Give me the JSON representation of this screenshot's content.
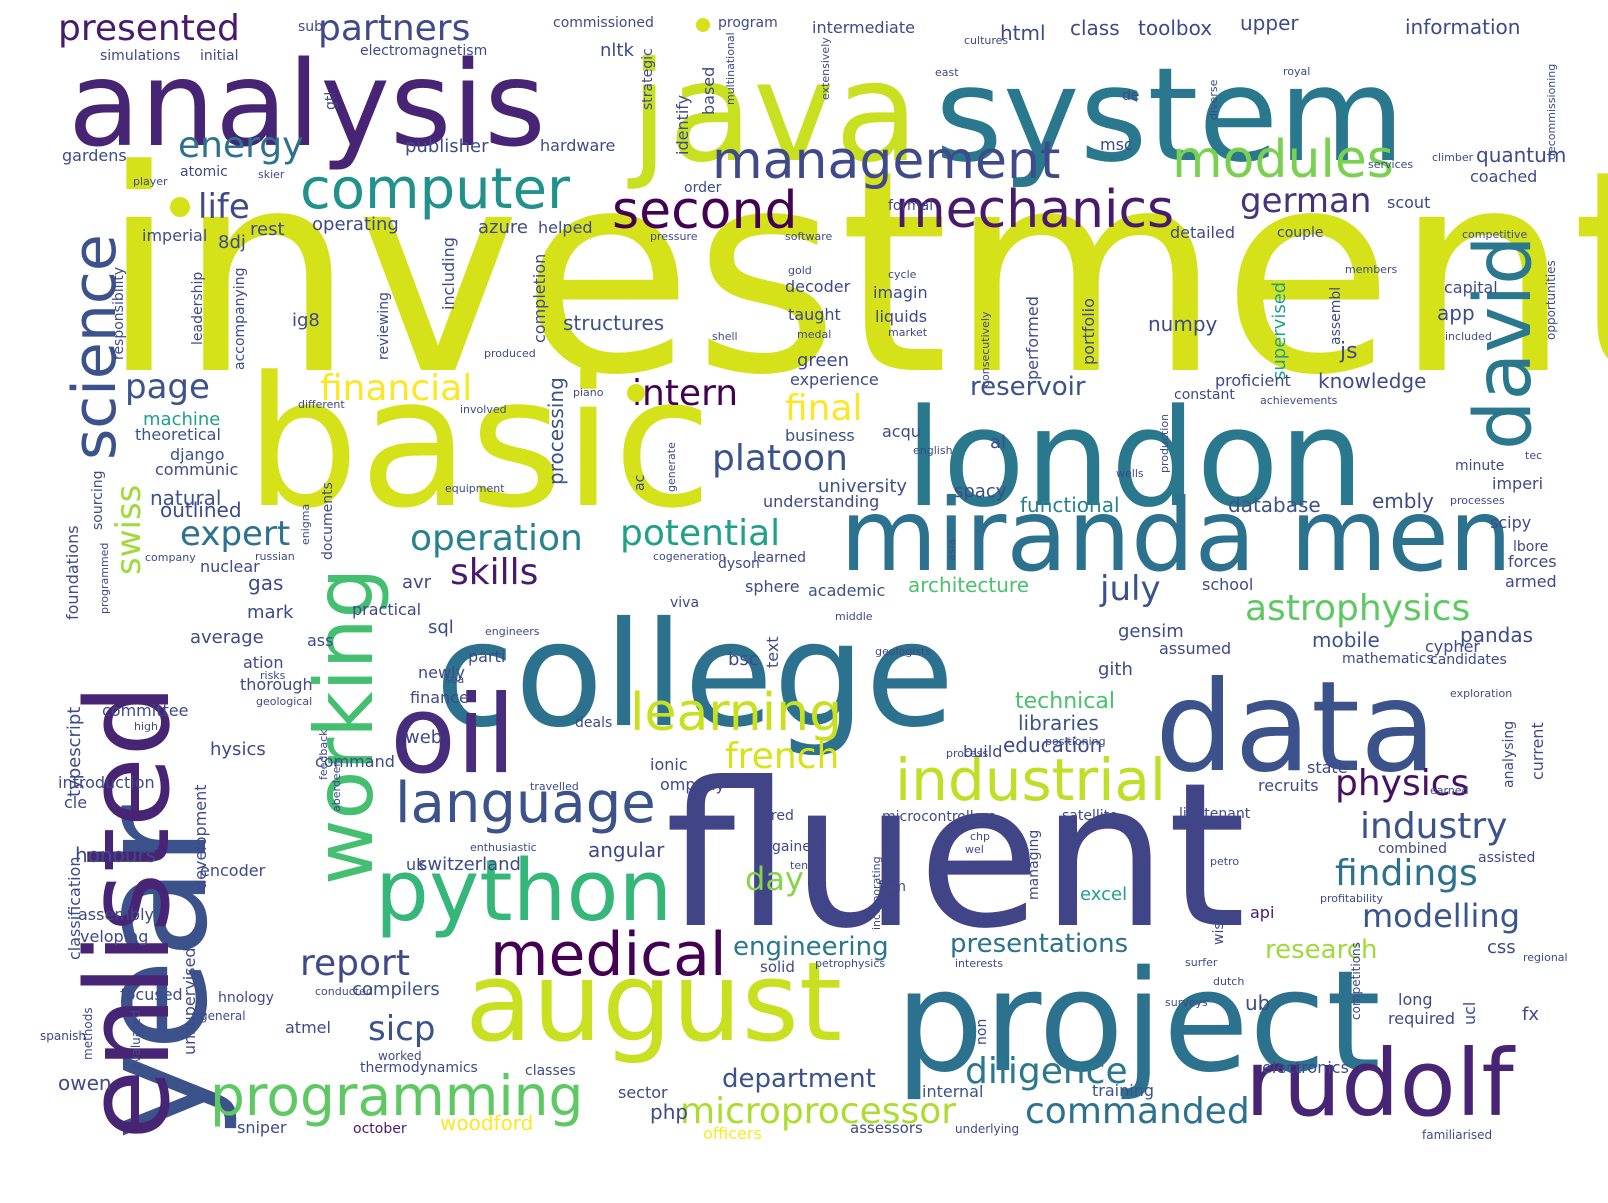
{
  "words": [
    {
      "t": "investment",
      "c": "#d5e21a"
    },
    {
      "t": "fluent",
      "c": "#414487"
    },
    {
      "t": "basic",
      "c": "#d5e21a"
    },
    {
      "t": "year",
      "c": "#3b528b"
    },
    {
      "t": "college",
      "c": "#2c728e"
    },
    {
      "t": "project",
      "c": "#2c728e"
    },
    {
      "t": "java",
      "c": "#c8e020"
    },
    {
      "t": "london",
      "c": "#2a788e"
    },
    {
      "t": "system",
      "c": "#2a788e"
    },
    {
      "t": "analysis",
      "c": "#482475"
    },
    {
      "t": "data",
      "c": "#3b528b"
    },
    {
      "t": "enlisted",
      "c": "#482475"
    },
    {
      "t": "august",
      "c": "#c8e020"
    },
    {
      "t": "miranda",
      "c": "#2c728e"
    },
    {
      "t": "men",
      "c": "#2c728e"
    },
    {
      "t": "oil",
      "c": "#472d7b"
    },
    {
      "t": "rudolf",
      "c": "#482475"
    },
    {
      "t": "python",
      "c": "#35b779"
    },
    {
      "t": "working",
      "c": "#44bf70"
    },
    {
      "t": "david",
      "c": "#2a788e"
    },
    {
      "t": "science",
      "c": "#3b528b"
    },
    {
      "t": "medical",
      "c": "#440154"
    },
    {
      "t": "industrial",
      "c": "#bddf26"
    },
    {
      "t": "language",
      "c": "#3b528b"
    },
    {
      "t": "programming",
      "c": "#5ec962"
    },
    {
      "t": "computer",
      "c": "#21918c"
    },
    {
      "t": "mechanics",
      "c": "#481a6c"
    },
    {
      "t": "management",
      "c": "#3e4a89"
    },
    {
      "t": "modules",
      "c": "#7ad151"
    },
    {
      "t": "second",
      "c": "#440154"
    },
    {
      "t": "learning",
      "c": "#c8e020"
    },
    {
      "t": "astrophysics",
      "c": "#5ec962"
    },
    {
      "t": "operation",
      "c": "#26828e"
    },
    {
      "t": "microprocessor",
      "c": "#addc30"
    },
    {
      "t": "diligence",
      "c": "#2a788e"
    },
    {
      "t": "commanded",
      "c": "#2c728e"
    },
    {
      "t": "industry",
      "c": "#3b528b"
    },
    {
      "t": "findings",
      "c": "#2c728e"
    },
    {
      "t": "physics",
      "c": "#471063"
    },
    {
      "t": "modelling",
      "c": "#39568c"
    },
    {
      "t": "potential",
      "c": "#1fa088"
    },
    {
      "t": "platoon",
      "c": "#3b528b"
    },
    {
      "t": "intern",
      "c": "#440154"
    },
    {
      "t": "financial",
      "c": "#fde725"
    },
    {
      "t": "french",
      "c": "#d8e219"
    },
    {
      "t": "german",
      "c": "#46337e"
    },
    {
      "t": "partners",
      "c": "#3e4a89"
    },
    {
      "t": "presented",
      "c": "#481a6c"
    },
    {
      "t": "energy",
      "c": "#2c728e"
    },
    {
      "t": "report",
      "c": "#3e4a89"
    },
    {
      "t": "skills",
      "c": "#481a6c"
    },
    {
      "t": "expert",
      "c": "#2c728e"
    },
    {
      "t": "swiss",
      "c": "#a0da39"
    },
    {
      "t": "page",
      "c": "#3b528b"
    },
    {
      "t": "life",
      "c": "#3e4a89"
    },
    {
      "t": "july",
      "c": "#3b528b"
    },
    {
      "t": "final",
      "c": "#fde725"
    },
    {
      "t": "sicp",
      "c": "#3b528b"
    },
    {
      "t": "day",
      "c": "#86d549"
    },
    {
      "t": "engineering",
      "c": "#2a788e"
    },
    {
      "t": "presentations",
      "c": "#2c728e"
    },
    {
      "t": "research",
      "c": "#a0da39"
    },
    {
      "t": "department",
      "c": "#3b528b"
    },
    {
      "t": "reservoir",
      "c": "#3b528b"
    },
    {
      "t": "knowledge",
      "c": "#3e4a89"
    },
    {
      "t": "technical",
      "c": "#4ac16d"
    },
    {
      "t": "libraries",
      "c": "#3b528b"
    },
    {
      "t": "education",
      "c": "#3e4a89"
    },
    {
      "t": "functional",
      "c": "#26828e"
    },
    {
      "t": "database",
      "c": "#3b528b"
    },
    {
      "t": "embly",
      "c": "#3e4a89"
    },
    {
      "t": "university",
      "c": "#3b528b"
    },
    {
      "t": "business",
      "c": "#3b528b"
    },
    {
      "t": "structures",
      "c": "#3b528b"
    },
    {
      "t": "architecture",
      "c": "#4ac16d"
    },
    {
      "t": "academic",
      "c": "#3b528b"
    },
    {
      "t": "machine",
      "c": "#1fa088"
    },
    {
      "t": "theoretical",
      "c": "#3b528b"
    },
    {
      "t": "django",
      "c": "#3b528b"
    },
    {
      "t": "natural",
      "c": "#3b528b"
    },
    {
      "t": "mobile",
      "c": "#3b528b"
    },
    {
      "t": "pandas",
      "c": "#3e4a89"
    },
    {
      "t": "angular",
      "c": "#3e4a89"
    },
    {
      "t": "switzerland",
      "c": "#3e4a89"
    },
    {
      "t": "excel",
      "c": "#1fa088"
    },
    {
      "t": "honours",
      "c": "#3e4a89"
    },
    {
      "t": "assembly",
      "c": "#3e4a89"
    },
    {
      "t": "typescript",
      "c": "#3e4a89"
    },
    {
      "t": "classification",
      "c": "#3e4a89"
    },
    {
      "t": "foundations",
      "c": "#3e4a89"
    },
    {
      "t": "unsupervised",
      "c": "#3e4a89"
    },
    {
      "t": "supervised",
      "c": "#1fa088"
    },
    {
      "t": "processing",
      "c": "#3b528b"
    },
    {
      "t": "compilers",
      "c": "#3b528b"
    },
    {
      "t": "owen",
      "c": "#3e4a89"
    },
    {
      "t": "electronics",
      "c": "#3e4a89"
    },
    {
      "t": "training",
      "c": "#3b528b"
    },
    {
      "t": "woodford",
      "c": "#fde725"
    },
    {
      "t": "officers",
      "c": "#fde725"
    },
    {
      "t": "assessors",
      "c": "#3e4a89"
    },
    {
      "t": "internal",
      "c": "#3b528b"
    },
    {
      "t": "sniper",
      "c": "#3e4a89"
    },
    {
      "t": "october",
      "c": "#481a6c"
    },
    {
      "t": "underlying",
      "c": "#3e4a89"
    },
    {
      "t": "familiarised",
      "c": "#3e4a89"
    },
    {
      "t": "classes",
      "c": "#3e4a89"
    },
    {
      "t": "thermodynamics",
      "c": "#3e4a89"
    },
    {
      "t": "atmel",
      "c": "#3e4a89"
    },
    {
      "t": "worked",
      "c": "#3e4a89"
    },
    {
      "t": "evaluated",
      "c": "#3e4a89"
    },
    {
      "t": "methods",
      "c": "#3e4a89"
    },
    {
      "t": "spanish",
      "c": "#3e4a89"
    },
    {
      "t": "general",
      "c": "#3e4a89"
    },
    {
      "t": "focused",
      "c": "#3e4a89"
    },
    {
      "t": "hnology",
      "c": "#3e4a89"
    },
    {
      "t": "conducted",
      "c": "#3e4a89"
    },
    {
      "t": "veloping",
      "c": "#3e4a89"
    },
    {
      "t": "solid",
      "c": "#3e4a89"
    },
    {
      "t": "petrophysics",
      "c": "#3e4a89"
    },
    {
      "t": "interests",
      "c": "#3e4a89"
    },
    {
      "t": "surfer",
      "c": "#3e4a89"
    },
    {
      "t": "dutch",
      "c": "#3e4a89"
    },
    {
      "t": "surveys",
      "c": "#3e4a89"
    },
    {
      "t": "long",
      "c": "#3e4a89"
    },
    {
      "t": "required",
      "c": "#3e4a89"
    },
    {
      "t": "ucl",
      "c": "#3e4a89"
    },
    {
      "t": "fx",
      "c": "#3e4a89"
    },
    {
      "t": "competitions",
      "c": "#3e4a89"
    },
    {
      "t": "regional",
      "c": "#3e4a89"
    },
    {
      "t": "css",
      "c": "#3e4a89"
    },
    {
      "t": "api",
      "c": "#481a6c"
    },
    {
      "t": "wise",
      "c": "#3e4a89"
    },
    {
      "t": "ub",
      "c": "#3e4a89"
    },
    {
      "t": "non",
      "c": "#3e4a89"
    },
    {
      "t": "profitability",
      "c": "#3e4a89"
    },
    {
      "t": "assisted",
      "c": "#3e4a89"
    },
    {
      "t": "combined",
      "c": "#3e4a89"
    },
    {
      "t": "petro",
      "c": "#3e4a89"
    },
    {
      "t": "managing",
      "c": "#3e4a89"
    },
    {
      "t": "firm",
      "c": "#3e4a89"
    },
    {
      "t": "tennis",
      "c": "#3e4a89"
    },
    {
      "t": "incorporating",
      "c": "#3e4a89"
    },
    {
      "t": "gained",
      "c": "#3e4a89"
    },
    {
      "t": "ired",
      "c": "#3e4a89"
    },
    {
      "t": "microcontrollers",
      "c": "#3e4a89"
    },
    {
      "t": "satellite",
      "c": "#3e4a89"
    },
    {
      "t": "lieutenant",
      "c": "#3e4a89"
    },
    {
      "t": "recruits",
      "c": "#3e4a89"
    },
    {
      "t": "state",
      "c": "#3e4a89"
    },
    {
      "t": "current",
      "c": "#3e4a89"
    },
    {
      "t": "analysing",
      "c": "#3e4a89"
    },
    {
      "t": "earned",
      "c": "#3e4a89"
    },
    {
      "t": "exploration",
      "c": "#3e4a89"
    },
    {
      "t": "mathematics",
      "c": "#3e4a89"
    },
    {
      "t": "candidates",
      "c": "#3e4a89"
    },
    {
      "t": "cypher",
      "c": "#3e4a89"
    },
    {
      "t": "assumed",
      "c": "#3e4a89"
    },
    {
      "t": "gensim",
      "c": "#3e4a89"
    },
    {
      "t": "gith",
      "c": "#3e4a89"
    },
    {
      "t": "school",
      "c": "#3e4a89"
    },
    {
      "t": "armed",
      "c": "#3e4a89"
    },
    {
      "t": "forces",
      "c": "#3e4a89"
    },
    {
      "t": "lbore",
      "c": "#3e4a89"
    },
    {
      "t": "scipy",
      "c": "#3e4a89"
    },
    {
      "t": "imperi",
      "c": "#3e4a89"
    },
    {
      "t": "minute",
      "c": "#3e4a89"
    },
    {
      "t": "tec",
      "c": "#3e4a89"
    },
    {
      "t": "processes",
      "c": "#3e4a89"
    },
    {
      "t": "wells",
      "c": "#3e4a89"
    },
    {
      "t": "production",
      "c": "#3e4a89"
    },
    {
      "t": "achievements",
      "c": "#3e4a89"
    },
    {
      "t": "constant",
      "c": "#3e4a89"
    },
    {
      "t": "proficient",
      "c": "#3e4a89"
    },
    {
      "t": "js",
      "c": "#3e4a89"
    },
    {
      "t": "numpy",
      "c": "#3e4a89"
    },
    {
      "t": "assembl",
      "c": "#3e4a89"
    },
    {
      "t": "included",
      "c": "#3e4a89"
    },
    {
      "t": "opportunities",
      "c": "#3e4a89"
    },
    {
      "t": "app",
      "c": "#3e4a89"
    },
    {
      "t": "capital",
      "c": "#3e4a89"
    },
    {
      "t": "members",
      "c": "#3e4a89"
    },
    {
      "t": "competitive",
      "c": "#3e4a89"
    },
    {
      "t": "couple",
      "c": "#3e4a89"
    },
    {
      "t": "detailed",
      "c": "#3e4a89"
    },
    {
      "t": "scout",
      "c": "#3e4a89"
    },
    {
      "t": "coached",
      "c": "#3e4a89"
    },
    {
      "t": "quantum",
      "c": "#3e4a89"
    },
    {
      "t": "climber",
      "c": "#3e4a89"
    },
    {
      "t": "services",
      "c": "#3e4a89"
    },
    {
      "t": "royal",
      "c": "#3e4a89"
    },
    {
      "t": "decommissioning",
      "c": "#3e4a89"
    },
    {
      "t": "information",
      "c": "#3e4a89"
    },
    {
      "t": "upper",
      "c": "#3e4a89"
    },
    {
      "t": "toolbox",
      "c": "#3e4a89"
    },
    {
      "t": "class",
      "c": "#3e4a89"
    },
    {
      "t": "html",
      "c": "#3e4a89"
    },
    {
      "t": "de",
      "c": "#3e4a89"
    },
    {
      "t": "diverse",
      "c": "#3e4a89"
    },
    {
      "t": "east",
      "c": "#3e4a89"
    },
    {
      "t": "cultures",
      "c": "#3e4a89"
    },
    {
      "t": "intermediate",
      "c": "#3e4a89"
    },
    {
      "t": "program",
      "c": "#3e4a89"
    },
    {
      "t": "commissioned",
      "c": "#3e4a89"
    },
    {
      "t": "sub",
      "c": "#3e4a89"
    },
    {
      "t": "simulations",
      "c": "#3e4a89"
    },
    {
      "t": "initial",
      "c": "#3e4a89"
    },
    {
      "t": "electromagnetism",
      "c": "#3e4a89"
    },
    {
      "t": "nltk",
      "c": "#3e4a89"
    },
    {
      "t": "msc",
      "c": "#3e4a89"
    },
    {
      "t": "hardware",
      "c": "#3e4a89"
    },
    {
      "t": "publisher",
      "c": "#3e4a89"
    },
    {
      "t": "gtl",
      "c": "#3e4a89"
    },
    {
      "t": "gardens",
      "c": "#3e4a89"
    },
    {
      "t": "atomic",
      "c": "#3e4a89"
    },
    {
      "t": "player",
      "c": "#3e4a89"
    },
    {
      "t": "skier",
      "c": "#3e4a89"
    },
    {
      "t": "imperial",
      "c": "#3e4a89"
    },
    {
      "t": "rest",
      "c": "#3e4a89"
    },
    {
      "t": "operating",
      "c": "#3e4a89"
    },
    {
      "t": "azure",
      "c": "#3e4a89"
    },
    {
      "t": "helped",
      "c": "#3e4a89"
    },
    {
      "t": "pressure",
      "c": "#3e4a89"
    },
    {
      "t": "software",
      "c": "#3e4a89"
    },
    {
      "t": "formal",
      "c": "#3e4a89"
    },
    {
      "t": "order",
      "c": "#3e4a89"
    },
    {
      "t": "identify",
      "c": "#3e4a89"
    },
    {
      "t": "strategic",
      "c": "#3e4a89"
    },
    {
      "t": "based",
      "c": "#3e4a89"
    },
    {
      "t": "multinational",
      "c": "#3e4a89"
    },
    {
      "t": "extensively",
      "c": "#3e4a89"
    },
    {
      "t": "8dj",
      "c": "#3e4a89"
    },
    {
      "t": "ig8",
      "c": "#3e4a89"
    },
    {
      "t": "leadership",
      "c": "#3e4a89"
    },
    {
      "t": "responsibility",
      "c": "#3e4a89"
    },
    {
      "t": "accompanying",
      "c": "#3e4a89"
    },
    {
      "t": "reviewing",
      "c": "#3e4a89"
    },
    {
      "t": "including",
      "c": "#3e4a89"
    },
    {
      "t": "completion",
      "c": "#3e4a89"
    },
    {
      "t": "produced",
      "c": "#3e4a89"
    },
    {
      "t": "decoder",
      "c": "#3e4a89"
    },
    {
      "t": "taught",
      "c": "#3e4a89"
    },
    {
      "t": "imagin",
      "c": "#3e4a89"
    },
    {
      "t": "liquids",
      "c": "#3e4a89"
    },
    {
      "t": "cycle",
      "c": "#3e4a89"
    },
    {
      "t": "gold",
      "c": "#3e4a89"
    },
    {
      "t": "medal",
      "c": "#3e4a89"
    },
    {
      "t": "market",
      "c": "#3e4a89"
    },
    {
      "t": "shell",
      "c": "#3e4a89"
    },
    {
      "t": "consecutively",
      "c": "#3e4a89"
    },
    {
      "t": "performed",
      "c": "#3e4a89"
    },
    {
      "t": "portfolio",
      "c": "#3e4a89"
    },
    {
      "t": "green",
      "c": "#3e4a89"
    },
    {
      "t": "experience",
      "c": "#3e4a89"
    },
    {
      "t": "acqu",
      "c": "#3e4a89"
    },
    {
      "t": "english",
      "c": "#3e4a89"
    },
    {
      "t": "al",
      "c": "#3e4a89"
    },
    {
      "t": "spacy",
      "c": "#3e4a89"
    },
    {
      "t": "understanding",
      "c": "#3e4a89"
    },
    {
      "t": "learned",
      "c": "#3e4a89"
    },
    {
      "t": "cogeneration",
      "c": "#3e4a89"
    },
    {
      "t": "dyson",
      "c": "#3e4a89"
    },
    {
      "t": "sphere",
      "c": "#3e4a89"
    },
    {
      "t": "viva",
      "c": "#3e4a89"
    },
    {
      "t": "middle",
      "c": "#3e4a89"
    },
    {
      "t": "text",
      "c": "#3e4a89"
    },
    {
      "t": "bsc",
      "c": "#3e4a89"
    },
    {
      "t": "geologists",
      "c": "#3e4a89"
    },
    {
      "t": "parti",
      "c": "#3e4a89"
    },
    {
      "t": "ionic",
      "c": "#3e4a89"
    },
    {
      "t": "ompany",
      "c": "#3e4a89"
    },
    {
      "t": "web",
      "c": "#3e4a89"
    },
    {
      "t": "build",
      "c": "#3e4a89"
    },
    {
      "t": "process",
      "c": "#3e4a89"
    },
    {
      "t": "positioning",
      "c": "#3e4a89"
    },
    {
      "t": "deals",
      "c": "#3e4a89"
    },
    {
      "t": "finance",
      "c": "#3e4a89"
    },
    {
      "t": "newly",
      "c": "#3e4a89"
    },
    {
      "t": "sql",
      "c": "#3e4a89"
    },
    {
      "t": "avr",
      "c": "#3e4a89"
    },
    {
      "t": "practical",
      "c": "#3e4a89"
    },
    {
      "t": "engineers",
      "c": "#3e4a89"
    },
    {
      "t": "sea",
      "c": "#3e4a89"
    },
    {
      "t": "ass",
      "c": "#3e4a89"
    },
    {
      "t": "documents",
      "c": "#3e4a89"
    },
    {
      "t": "mark",
      "c": "#3e4a89"
    },
    {
      "t": "gas",
      "c": "#3e4a89"
    },
    {
      "t": "average",
      "c": "#3e4a89"
    },
    {
      "t": "ation",
      "c": "#3e4a89"
    },
    {
      "t": "thorough",
      "c": "#3e4a89"
    },
    {
      "t": "risks",
      "c": "#3e4a89"
    },
    {
      "t": "geological",
      "c": "#3e4a89"
    },
    {
      "t": "committee",
      "c": "#3e4a89"
    },
    {
      "t": "high",
      "c": "#3e4a89"
    },
    {
      "t": "hysics",
      "c": "#3e4a89"
    },
    {
      "t": "command",
      "c": "#3e4a89"
    },
    {
      "t": "introduction",
      "c": "#3e4a89"
    },
    {
      "t": "cle",
      "c": "#3e4a89"
    },
    {
      "t": "feedback",
      "c": "#3e4a89"
    },
    {
      "t": "aberdeen",
      "c": "#3e4a89"
    },
    {
      "t": "development",
      "c": "#3e4a89"
    },
    {
      "t": "encoder",
      "c": "#3e4a89"
    },
    {
      "t": "enthusiastic",
      "c": "#3e4a89"
    },
    {
      "t": "uk",
      "c": "#3e4a89"
    },
    {
      "t": "travelled",
      "c": "#3e4a89"
    },
    {
      "t": "chp",
      "c": "#3e4a89"
    },
    {
      "t": "wel",
      "c": "#3e4a89"
    },
    {
      "t": "php",
      "c": "#3e4a89"
    },
    {
      "t": "sector",
      "c": "#3e4a89"
    },
    {
      "t": "communic",
      "c": "#3e4a89"
    },
    {
      "t": "outlined",
      "c": "#3e4a89"
    },
    {
      "t": "nuclear",
      "c": "#3e4a89"
    },
    {
      "t": "russian",
      "c": "#3e4a89"
    },
    {
      "t": "company",
      "c": "#3e4a89"
    },
    {
      "t": "sourcing",
      "c": "#3e4a89"
    },
    {
      "t": "programmed",
      "c": "#3e4a89"
    },
    {
      "t": "enigma",
      "c": "#3e4a89"
    },
    {
      "t": "different",
      "c": "#3e4a89"
    },
    {
      "t": "involved",
      "c": "#3e4a89"
    },
    {
      "t": "piano",
      "c": "#3e4a89"
    },
    {
      "t": "equipment",
      "c": "#3e4a89"
    },
    {
      "t": "generate",
      "c": "#3e4a89"
    },
    {
      "t": "ac",
      "c": "#3e4a89"
    },
    {
      "t": "asia",
      "c": "#3e4a89"
    }
  ]
}
